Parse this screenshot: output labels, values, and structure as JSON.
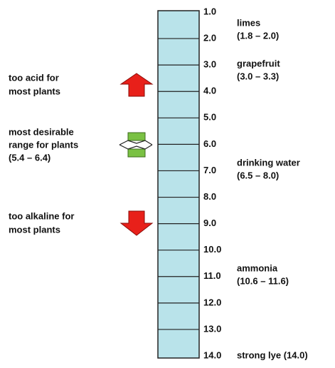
{
  "scale": {
    "ticks": [
      "1.0",
      "2.0",
      "3.0",
      "4.0",
      "5.0",
      "6.0",
      "7.0",
      "8.0",
      "9.0",
      "10.0",
      "11.0",
      "12.0",
      "13.0",
      "14.0"
    ]
  },
  "right_labels": [
    {
      "name": "limes",
      "range": "(1.8 – 2.0)"
    },
    {
      "name": "grapefruit",
      "range": "(3.0 – 3.3)"
    },
    {
      "name": "drinking water",
      "range": "(6.5 – 8.0)"
    },
    {
      "name": "ammonia",
      "range": "(10.6 – 11.6)"
    },
    {
      "name": "strong lye (14.0)"
    }
  ],
  "left_notes": [
    {
      "lines": [
        "too acid for",
        "most plants"
      ]
    },
    {
      "lines": [
        "most desirable",
        "range for plants",
        "(5.4 – 6.4)"
      ]
    },
    {
      "lines": [
        "too alkaline for",
        "most plants"
      ]
    }
  ]
}
